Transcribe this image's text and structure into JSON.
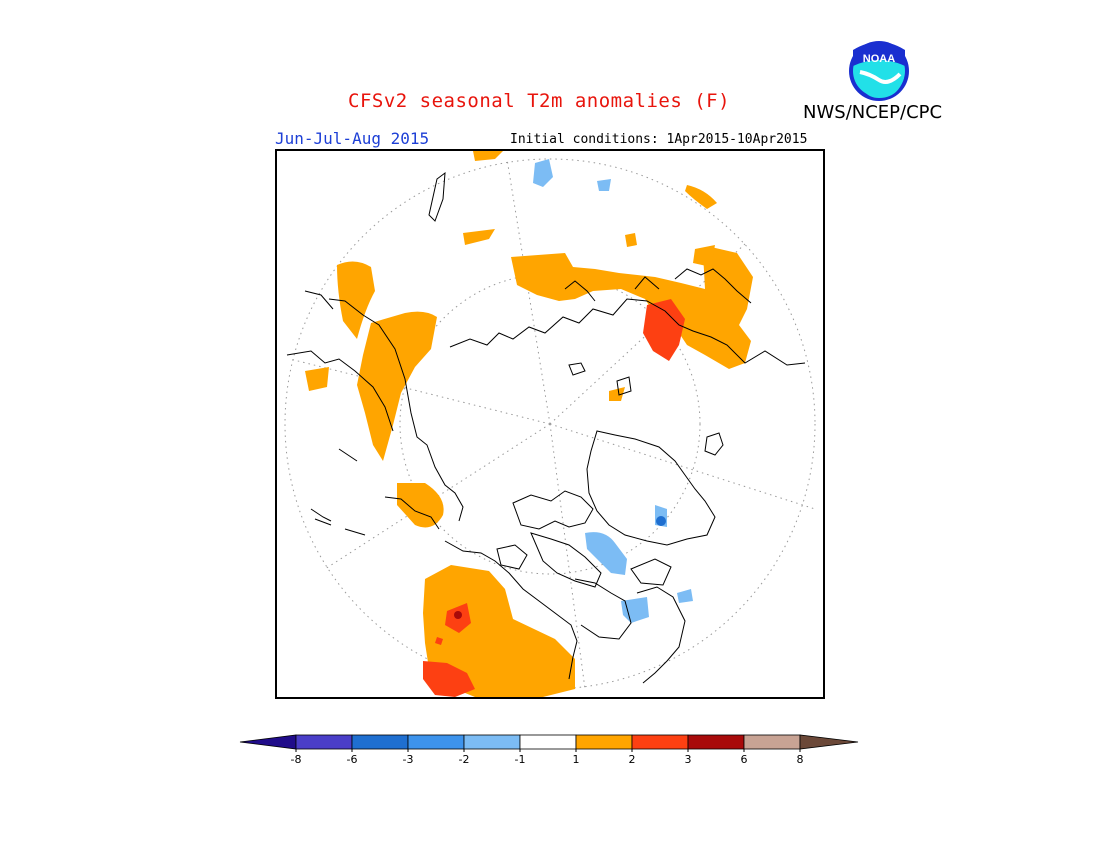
{
  "title": "CFSv2 seasonal T2m anomalies (F)",
  "agency": "NWS/NCEP/CPC",
  "logo_text": "NOAA",
  "period": "Jun-Jul-Aug 2015",
  "initial_conditions": "Initial conditions: 1Apr2015-10Apr2015",
  "colors": {
    "title": "#e8140c",
    "period": "#1d3fd6",
    "ocean_background": "#ffffff",
    "land_outline": "#000000"
  },
  "legend": {
    "bins": [
      {
        "range": "< -8",
        "color": "#200c8a"
      },
      {
        "range": "-8 to -6",
        "color": "#4a3ec8"
      },
      {
        "range": "-6 to -3",
        "color": "#1f6fd0"
      },
      {
        "range": "-3 to -2",
        "color": "#3d93ec"
      },
      {
        "range": "-2 to -1",
        "color": "#7cbcf4"
      },
      {
        "range": "-1 to 1",
        "color": "#ffffff"
      },
      {
        "range": "1 to 2",
        "color": "#ffa500"
      },
      {
        "range": "2 to 3",
        "color": "#fd4012"
      },
      {
        "range": "3 to 6",
        "color": "#a80a0a"
      },
      {
        "range": "6 to 8",
        "color": "#c8a394"
      },
      {
        "range": "> 8",
        "color": "#6b4838"
      }
    ],
    "ticks": [
      "-8",
      "-6",
      "-3",
      "-2",
      "-1",
      "1",
      "2",
      "3",
      "6",
      "8"
    ]
  }
}
